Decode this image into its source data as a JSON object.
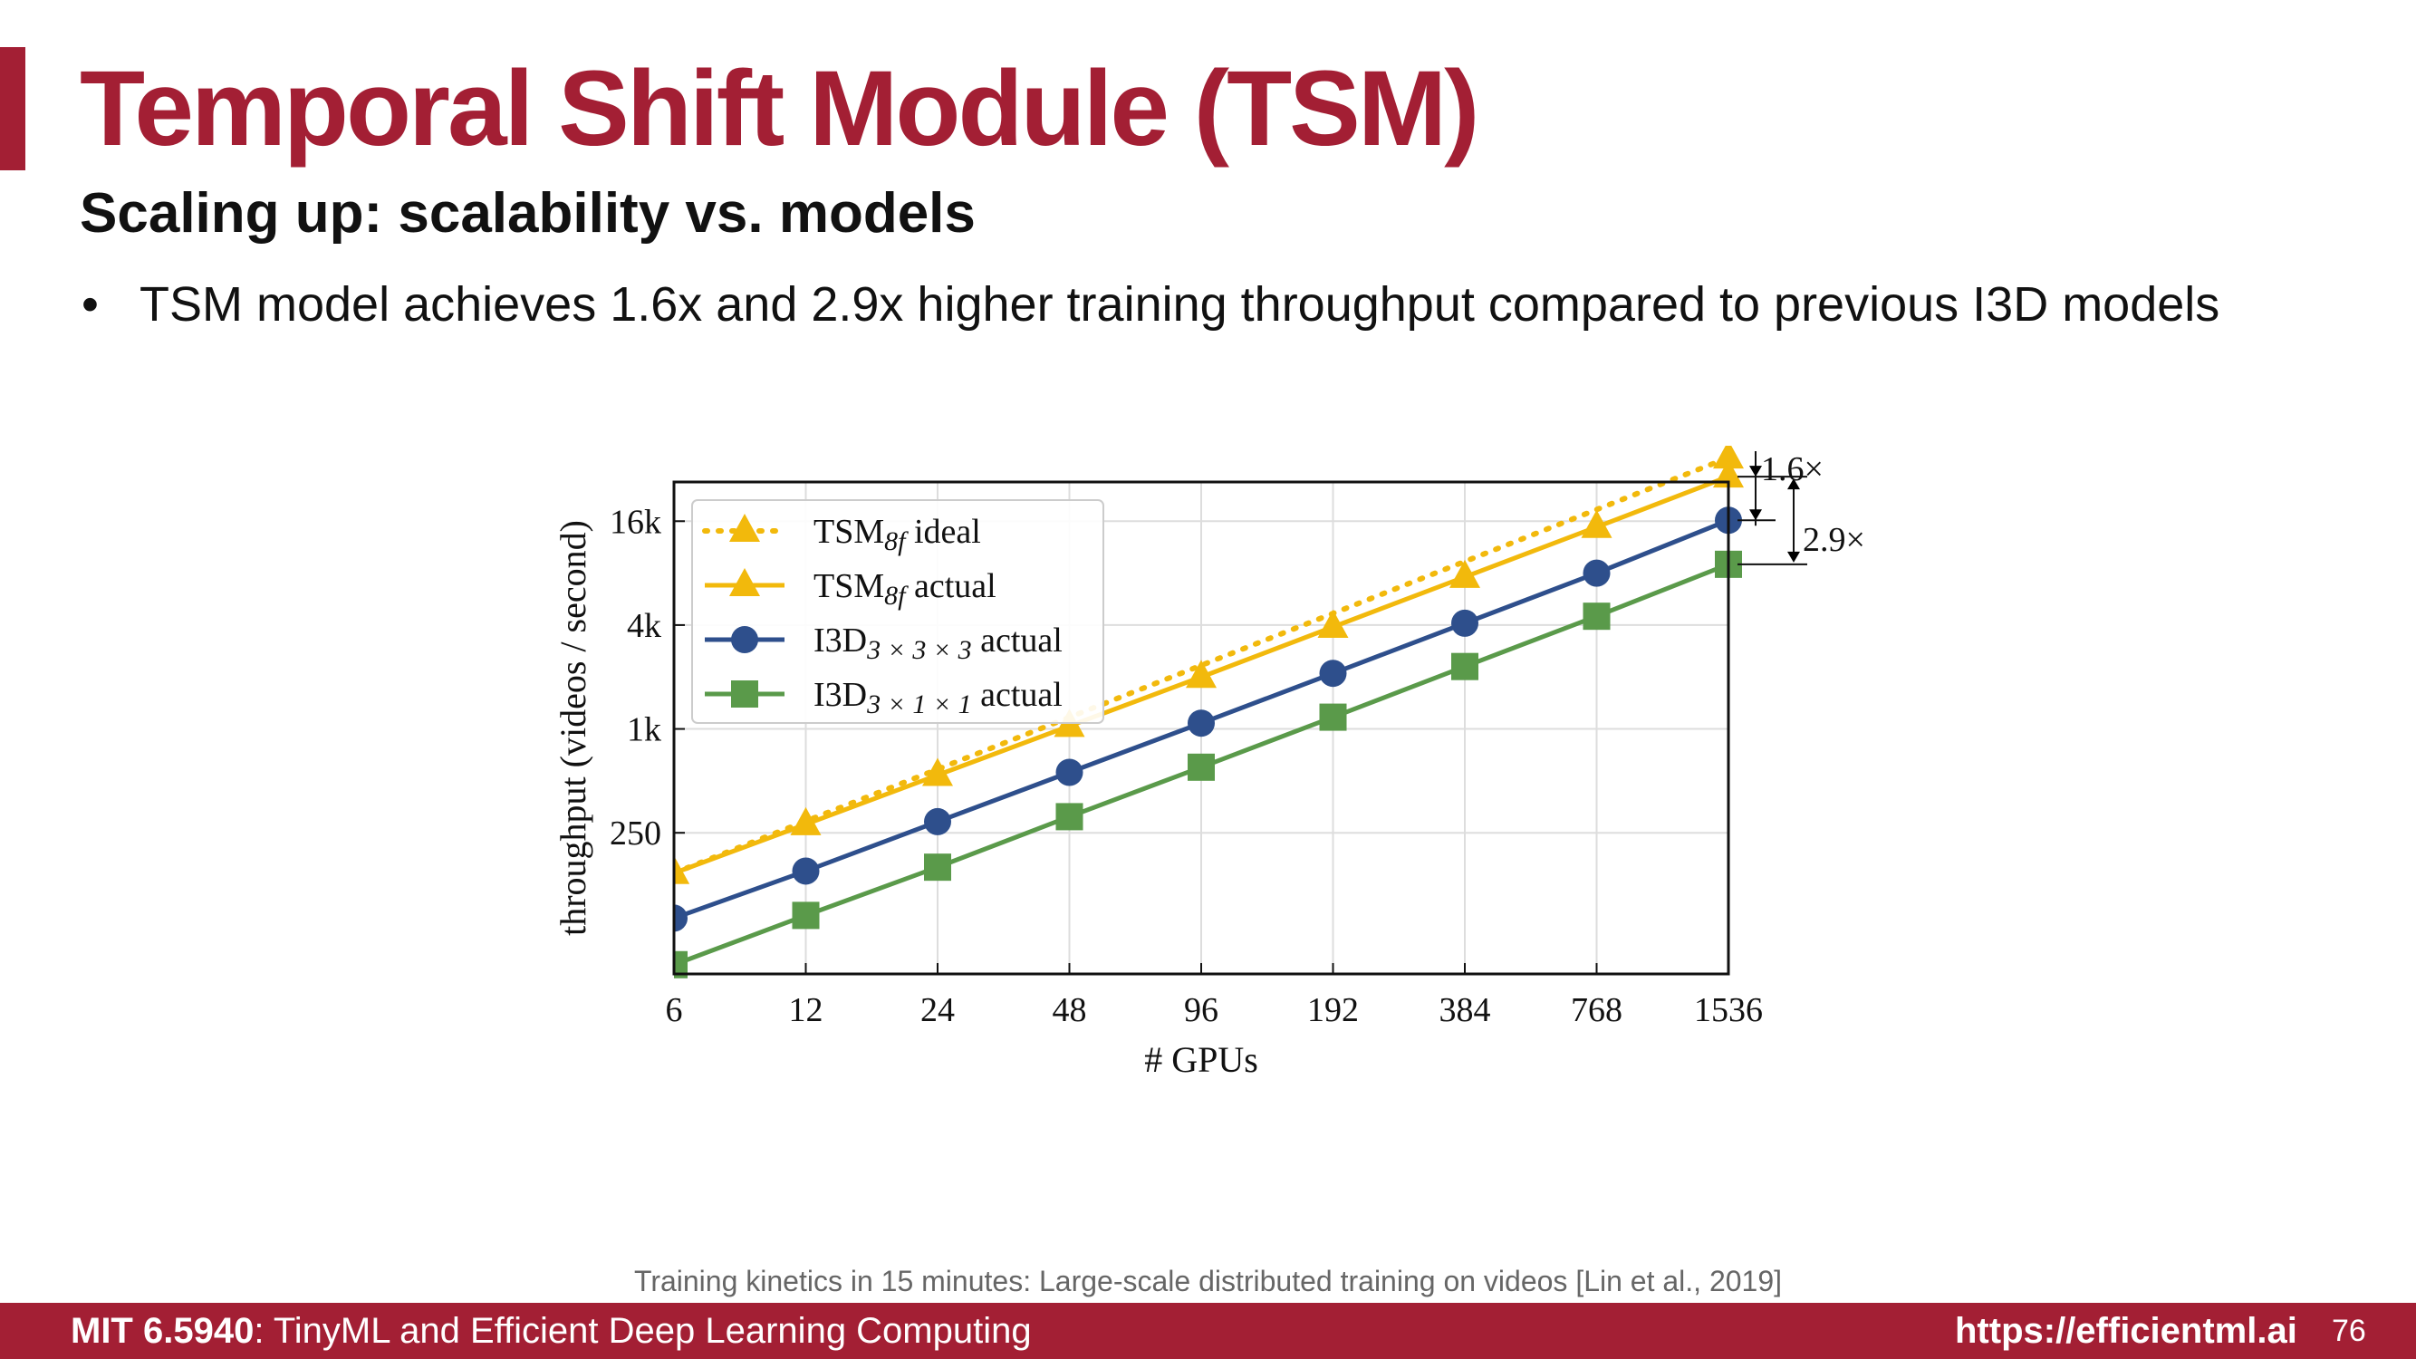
{
  "slide": {
    "title": "Temporal Shift Module (TSM)",
    "subtitle": "Scaling up: scalability vs. models",
    "bullet": "TSM model achieves 1.6x and 2.9x higher training throughput compared to previous I3D models",
    "citation": "Training kinetics in 15 minutes: Large-scale distributed training on videos [Lin et al., 2019]",
    "footer": {
      "course_code": "MIT 6.5940",
      "course_name": ": TinyML and Efficient Deep Learning Computing",
      "url": "https://efficientml.ai",
      "page": "76"
    },
    "accent_color": "#a31f34"
  },
  "chart_data": {
    "type": "line",
    "xlabel": "# GPUs",
    "ylabel": "throughput (videos / second)",
    "x_scale": "log2",
    "y_scale": "log",
    "x": [
      6,
      12,
      24,
      48,
      96,
      192,
      384,
      768,
      1536
    ],
    "x_tick_labels": [
      "6",
      "12",
      "24",
      "48",
      "96",
      "192",
      "384",
      "768",
      "1536"
    ],
    "y_ticks": [
      250,
      1000,
      4000,
      16000
    ],
    "y_tick_labels": [
      "250",
      "1k",
      "4k",
      "16k"
    ],
    "ylim": [
      38,
      27000
    ],
    "grid": true,
    "legend": "top-left",
    "series": [
      {
        "name_main": "TSM",
        "name_sub": "8f",
        "name_suffix": " ideal",
        "color": "#f2b90c",
        "marker": "triangle",
        "line": "dotted",
        "values": [
          146,
          292,
          584,
          1168,
          2336,
          4672,
          9344,
          18688,
          37376
        ]
      },
      {
        "name_main": "TSM",
        "name_sub": "8f",
        "name_suffix": " actual",
        "color": "#f2b90c",
        "marker": "triangle",
        "line": "solid",
        "values": [
          146,
          280,
          540,
          1040,
          2000,
          3900,
          7600,
          14800,
          29000
        ]
      },
      {
        "name_main": "I3D",
        "name_sub": "3 × 3 × 3",
        "name_suffix": " actual",
        "color": "#2e4f8c",
        "marker": "circle",
        "line": "solid",
        "values": [
          80,
          150,
          290,
          560,
          1080,
          2100,
          4100,
          8000,
          16200
        ]
      },
      {
        "name_main": "I3D",
        "name_sub": "3 × 1 × 1",
        "name_suffix": " actual",
        "color": "#5a9a4a",
        "marker": "square",
        "line": "solid",
        "values": [
          43,
          83,
          158,
          310,
          600,
          1170,
          2300,
          4500,
          9000
        ]
      }
    ],
    "annotations": [
      "1.6×",
      "2.9×"
    ]
  }
}
